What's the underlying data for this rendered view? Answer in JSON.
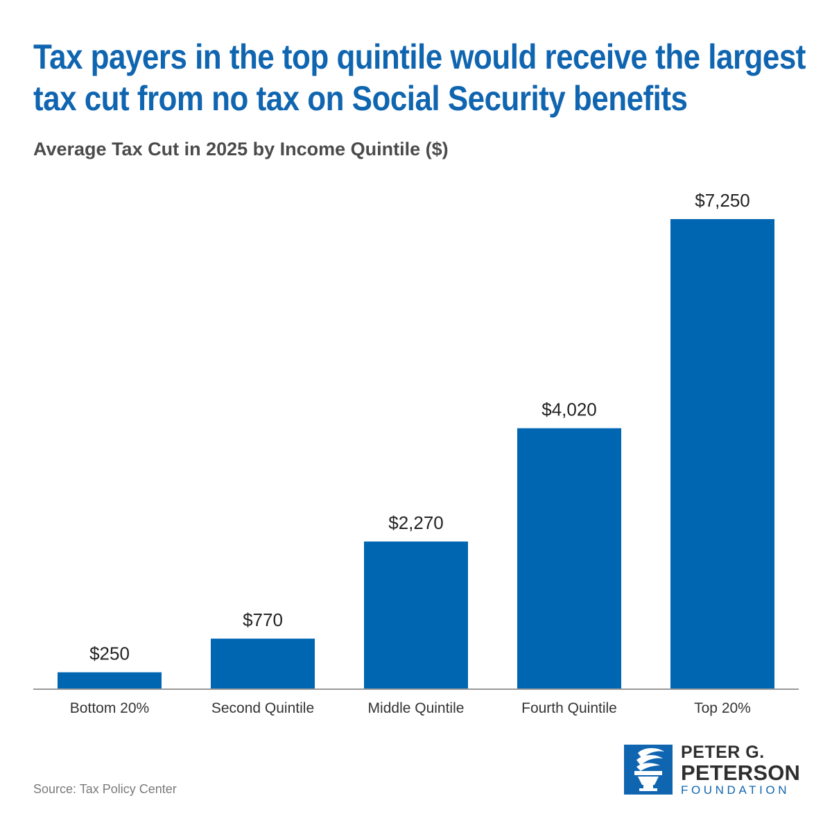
{
  "chart_data": {
    "type": "bar",
    "title_lines": [
      "Tax payers in the top quintile would receive the largest",
      "tax cut from no tax on Social Security benefits"
    ],
    "subtitle": "Average Tax Cut in 2025 by Income Quintile ($)",
    "categories": [
      "Bottom 20%",
      "Second Quintile",
      "Middle Quintile",
      "Fourth Quintile",
      "Top 20%"
    ],
    "values": [
      250,
      770,
      2270,
      4020,
      7250
    ],
    "value_labels": [
      "$250",
      "$770",
      "$2,270",
      "$4,020",
      "$7,250"
    ],
    "xlabel": "",
    "ylabel": "",
    "ylim": [
      0,
      7250
    ],
    "grid": false,
    "legend": "none",
    "bar_color": "#0066b2",
    "axis_color": "#999999"
  },
  "footer": {
    "source": "Source: Tax Policy Center"
  },
  "logo": {
    "line1": "PETER G.",
    "line2": "PETERSON",
    "line3": "FOUNDATION",
    "icon": "torch-icon",
    "color": "#1065b0"
  }
}
